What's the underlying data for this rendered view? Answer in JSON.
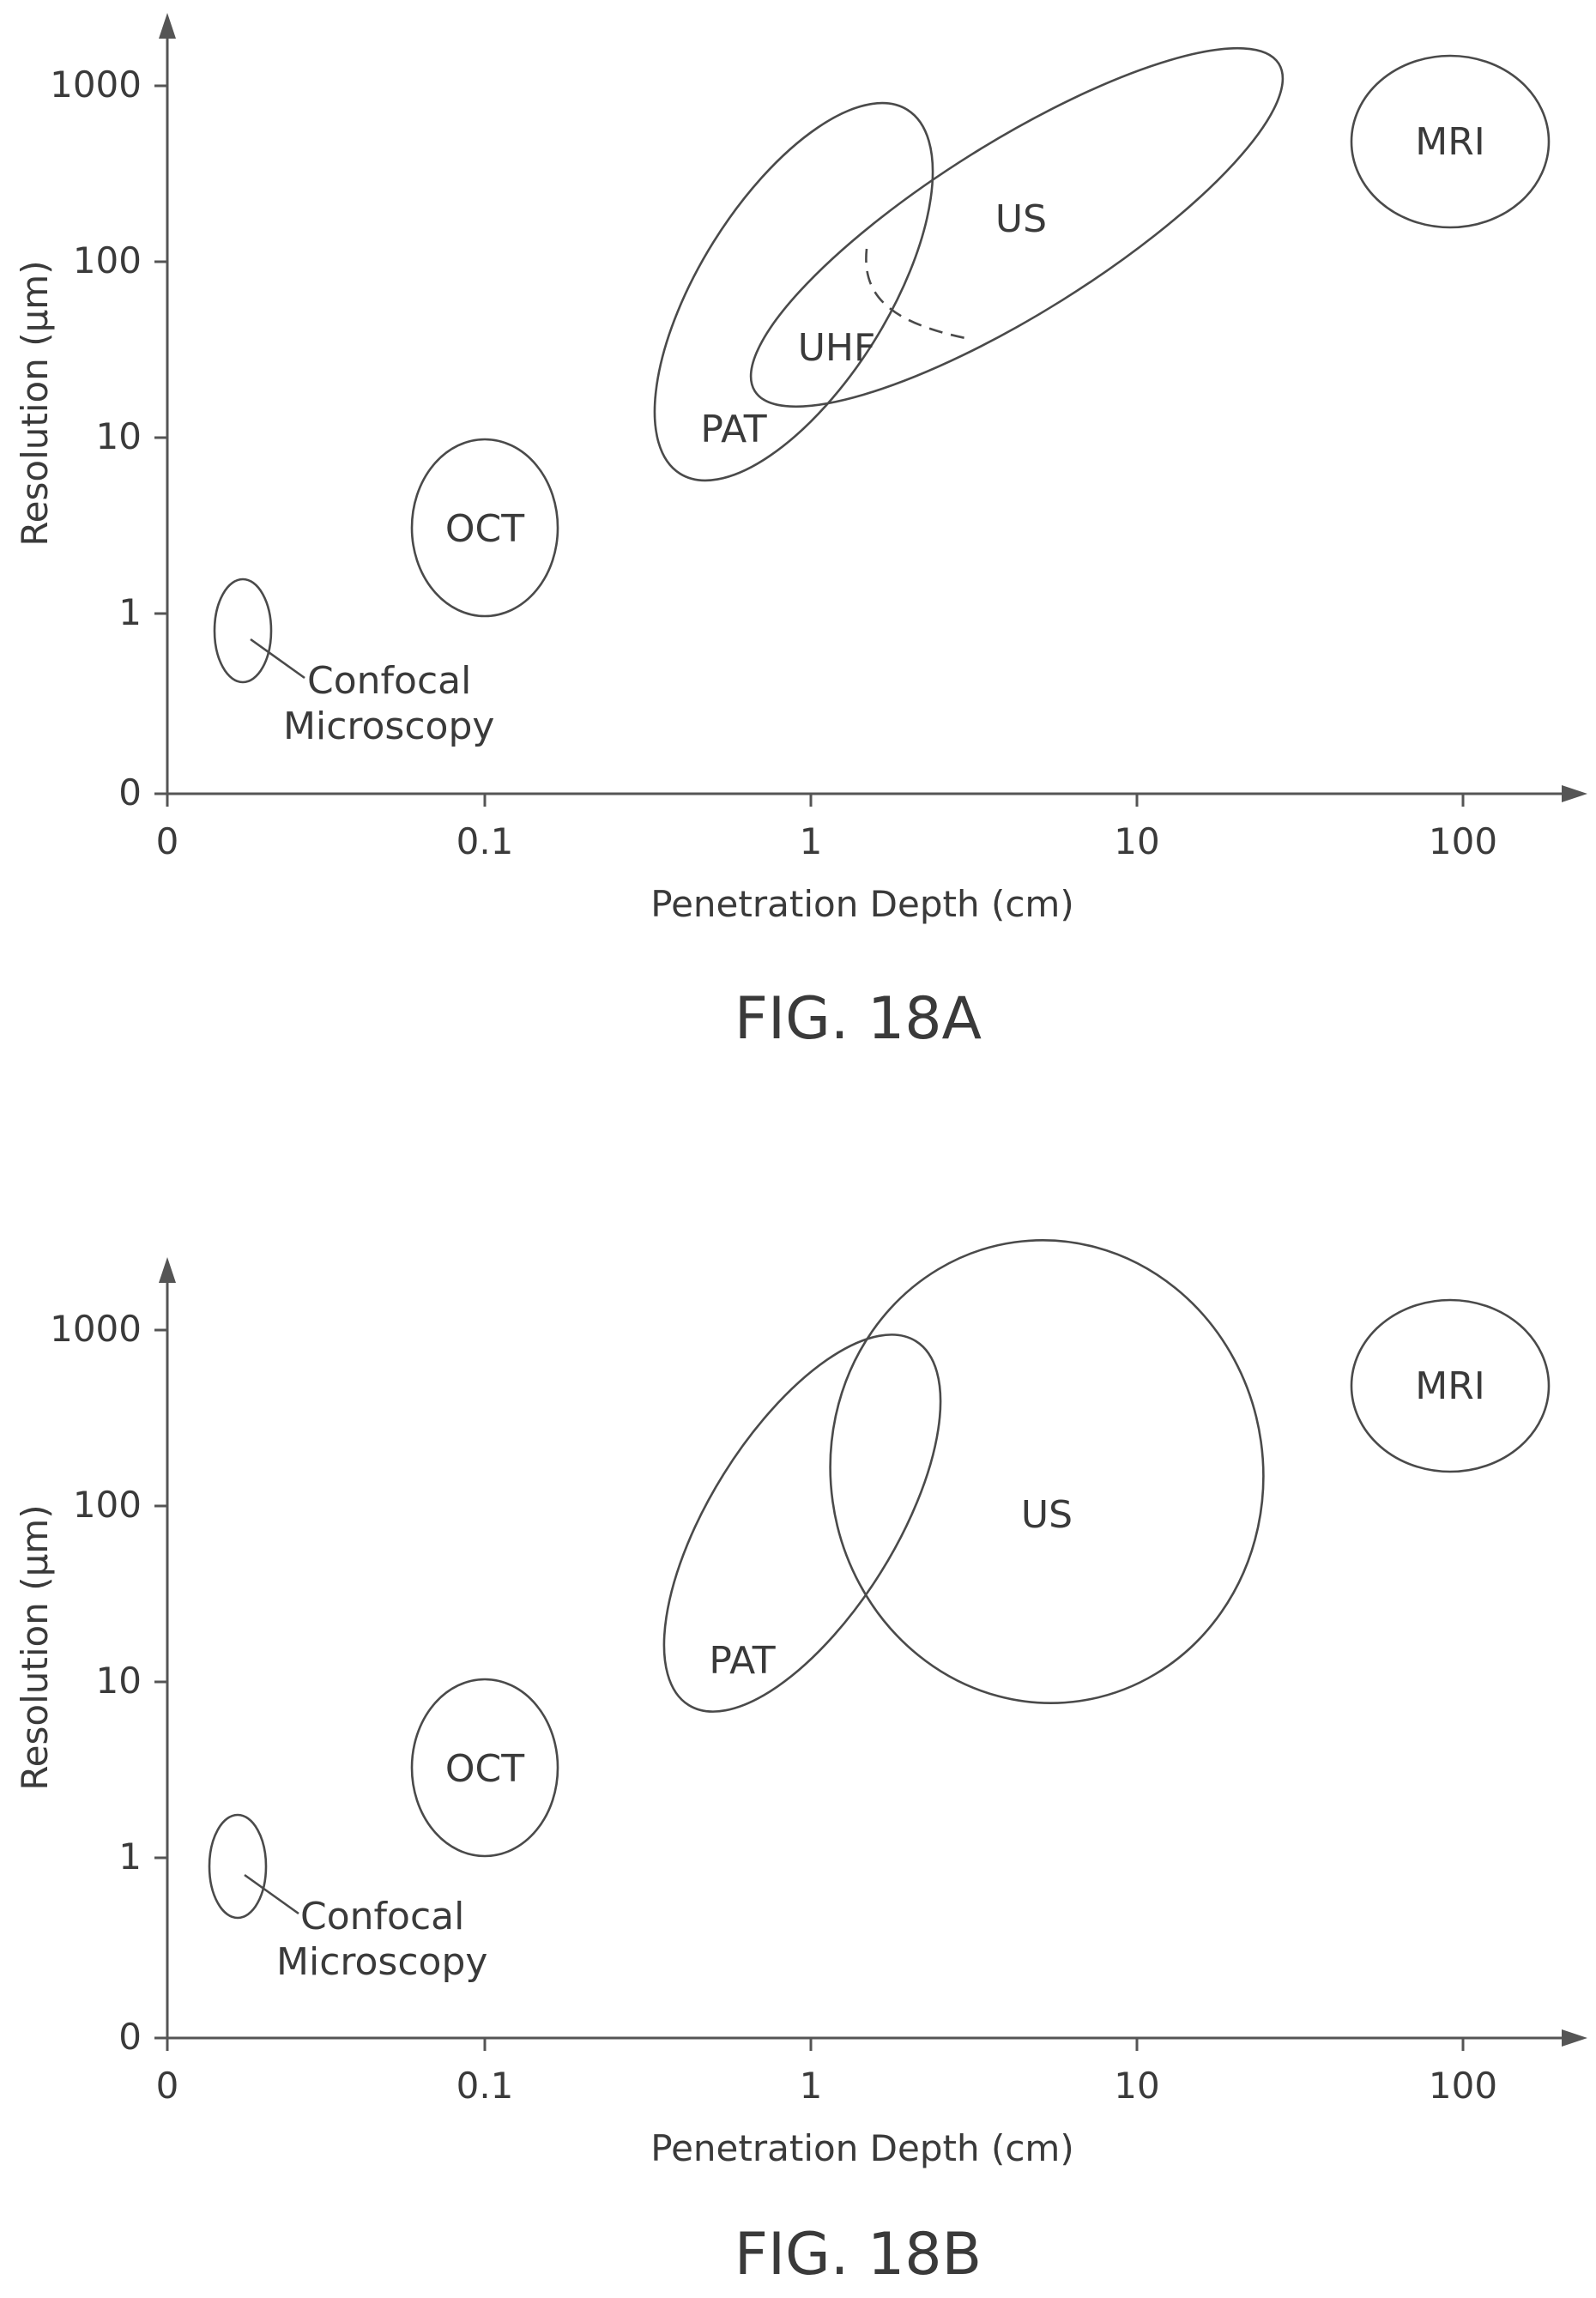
{
  "figures": [
    {
      "caption": "FIG. 18A",
      "x_axis": {
        "label": "Penetration Depth (cm)",
        "ticks": [
          "0",
          "0.1",
          "1",
          "10",
          "100"
        ]
      },
      "y_axis": {
        "label": "Resolution (μm)",
        "ticks": [
          "0",
          "1",
          "10",
          "100",
          "1000"
        ]
      },
      "regions": [
        {
          "label": "Confocal\nMicroscopy",
          "line_style": "solid"
        },
        {
          "label": "OCT",
          "line_style": "solid"
        },
        {
          "label": "PAT",
          "line_style": "solid"
        },
        {
          "label": "US",
          "line_style": "solid"
        },
        {
          "label": "UHF",
          "line_style": "dashed"
        },
        {
          "label": "MRI",
          "line_style": "solid"
        }
      ]
    },
    {
      "caption": "FIG. 18B",
      "x_axis": {
        "label": "Penetration Depth (cm)",
        "ticks": [
          "0",
          "0.1",
          "1",
          "10",
          "100"
        ]
      },
      "y_axis": {
        "label": "Resolution (μm)",
        "ticks": [
          "0",
          "1",
          "10",
          "100",
          "1000"
        ]
      },
      "regions": [
        {
          "label": "Confocal\nMicroscopy",
          "line_style": "solid"
        },
        {
          "label": "OCT",
          "line_style": "solid"
        },
        {
          "label": "PAT",
          "line_style": "solid"
        },
        {
          "label": "US",
          "line_style": "solid"
        },
        {
          "label": "MRI",
          "line_style": "solid"
        }
      ]
    }
  ]
}
